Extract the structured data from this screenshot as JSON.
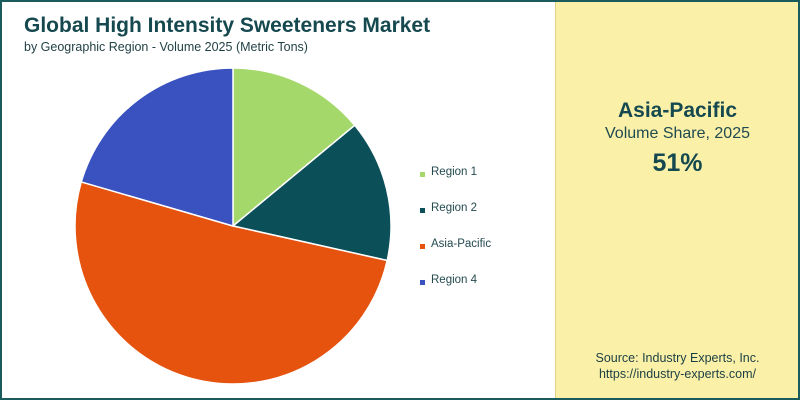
{
  "header": {
    "title": "Global High Intensity Sweeteners Market",
    "subtitle": "by Geographic Region - Volume 2025 (Metric Tons)"
  },
  "highlight": {
    "region": "Asia-Pacific",
    "metric": "Volume Share, 2025",
    "value": "51%"
  },
  "source": {
    "line1": "Source: Industry Experts, Inc.",
    "line2": "https://industry-experts.com/"
  },
  "colors": {
    "region1": "#a5d86b",
    "region2": "#0b4f58",
    "asia_pacific": "#e5530f",
    "region4": "#3a52c0",
    "panel": "#fbf0a8",
    "accent": "#15494f"
  },
  "chart_data": {
    "type": "pie",
    "title": "Global High Intensity Sweeteners Market",
    "subtitle": "by Geographic Region - Volume 2025 (Metric Tons)",
    "legend_position": "right",
    "start_angle_deg": 0,
    "direction": "clockwise",
    "slices": [
      {
        "label": "Region 1",
        "value": 14,
        "color": "#a5d86b"
      },
      {
        "label": "Region 2",
        "value": 14.5,
        "color": "#0b4f58"
      },
      {
        "label": "Asia-Pacific",
        "value": 51,
        "color": "#e5530f"
      },
      {
        "label": "Region 4",
        "value": 20.5,
        "color": "#3a52c0"
      }
    ]
  }
}
